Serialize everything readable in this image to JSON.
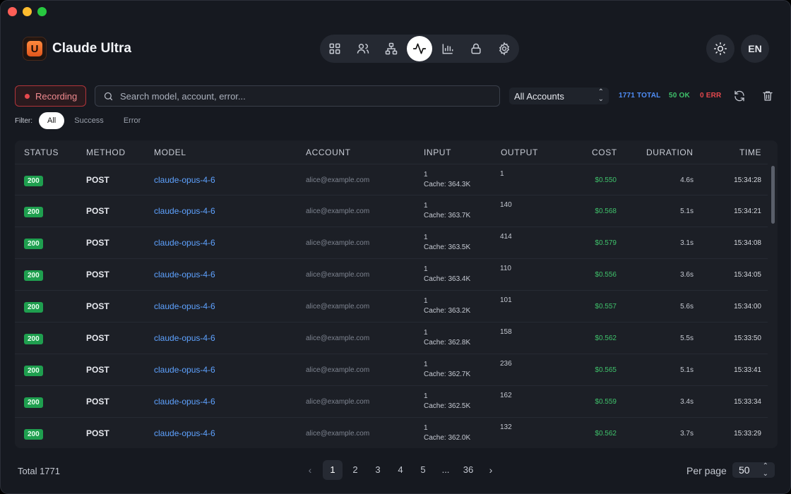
{
  "app": {
    "name": "Claude Ultra",
    "logo_letter": "U",
    "accent": "#e0551c"
  },
  "nav": {
    "items": [
      {
        "name": "dashboard-icon",
        "active": false
      },
      {
        "name": "users-icon",
        "active": false
      },
      {
        "name": "hierarchy-icon",
        "active": false
      },
      {
        "name": "activity-icon",
        "active": true
      },
      {
        "name": "bar-chart-icon",
        "active": false
      },
      {
        "name": "lock-icon",
        "active": false
      },
      {
        "name": "gear-icon",
        "active": false
      }
    ]
  },
  "header": {
    "theme_icon": "sun-icon",
    "language": "EN"
  },
  "toolbar": {
    "recording_label": "Recording",
    "search_placeholder": "Search model, account, error...",
    "account_filter": "All Accounts",
    "stats": {
      "total": "1771 TOTAL",
      "ok": "50 OK",
      "err": "0 ERR"
    }
  },
  "filter": {
    "label": "Filter:",
    "options": [
      "All",
      "Success",
      "Error"
    ],
    "selected": "All"
  },
  "table": {
    "columns": [
      "STATUS",
      "METHOD",
      "MODEL",
      "ACCOUNT",
      "INPUT",
      "OUTPUT",
      "COST",
      "DURATION",
      "TIME"
    ],
    "rows": [
      {
        "status": "200",
        "method": "POST",
        "model": "claude-opus-4-6",
        "account": "alice@example.com",
        "input": "1",
        "cache": "Cache: 364.3K",
        "output": "1",
        "cost": "$0.550",
        "duration": "4.6s",
        "time": "15:34:28"
      },
      {
        "status": "200",
        "method": "POST",
        "model": "claude-opus-4-6",
        "account": "alice@example.com",
        "input": "1",
        "cache": "Cache: 363.7K",
        "output": "140",
        "cost": "$0.568",
        "duration": "5.1s",
        "time": "15:34:21"
      },
      {
        "status": "200",
        "method": "POST",
        "model": "claude-opus-4-6",
        "account": "alice@example.com",
        "input": "1",
        "cache": "Cache: 363.5K",
        "output": "414",
        "cost": "$0.579",
        "duration": "3.1s",
        "time": "15:34:08"
      },
      {
        "status": "200",
        "method": "POST",
        "model": "claude-opus-4-6",
        "account": "alice@example.com",
        "input": "1",
        "cache": "Cache: 363.4K",
        "output": "110",
        "cost": "$0.556",
        "duration": "3.6s",
        "time": "15:34:05"
      },
      {
        "status": "200",
        "method": "POST",
        "model": "claude-opus-4-6",
        "account": "alice@example.com",
        "input": "1",
        "cache": "Cache: 363.2K",
        "output": "101",
        "cost": "$0.557",
        "duration": "5.6s",
        "time": "15:34:00"
      },
      {
        "status": "200",
        "method": "POST",
        "model": "claude-opus-4-6",
        "account": "alice@example.com",
        "input": "1",
        "cache": "Cache: 362.8K",
        "output": "158",
        "cost": "$0.562",
        "duration": "5.5s",
        "time": "15:33:50"
      },
      {
        "status": "200",
        "method": "POST",
        "model": "claude-opus-4-6",
        "account": "alice@example.com",
        "input": "1",
        "cache": "Cache: 362.7K",
        "output": "236",
        "cost": "$0.565",
        "duration": "5.1s",
        "time": "15:33:41"
      },
      {
        "status": "200",
        "method": "POST",
        "model": "claude-opus-4-6",
        "account": "alice@example.com",
        "input": "1",
        "cache": "Cache: 362.5K",
        "output": "162",
        "cost": "$0.559",
        "duration": "3.4s",
        "time": "15:33:34"
      },
      {
        "status": "200",
        "method": "POST",
        "model": "claude-opus-4-6",
        "account": "alice@example.com",
        "input": "1",
        "cache": "Cache: 362.0K",
        "output": "132",
        "cost": "$0.562",
        "duration": "3.7s",
        "time": "15:33:29"
      }
    ]
  },
  "footer": {
    "total": "Total 1771",
    "pages": [
      "1",
      "2",
      "3",
      "4",
      "5",
      "...",
      "36"
    ],
    "current_page": "1",
    "per_page_label": "Per page",
    "per_page_value": "50"
  }
}
